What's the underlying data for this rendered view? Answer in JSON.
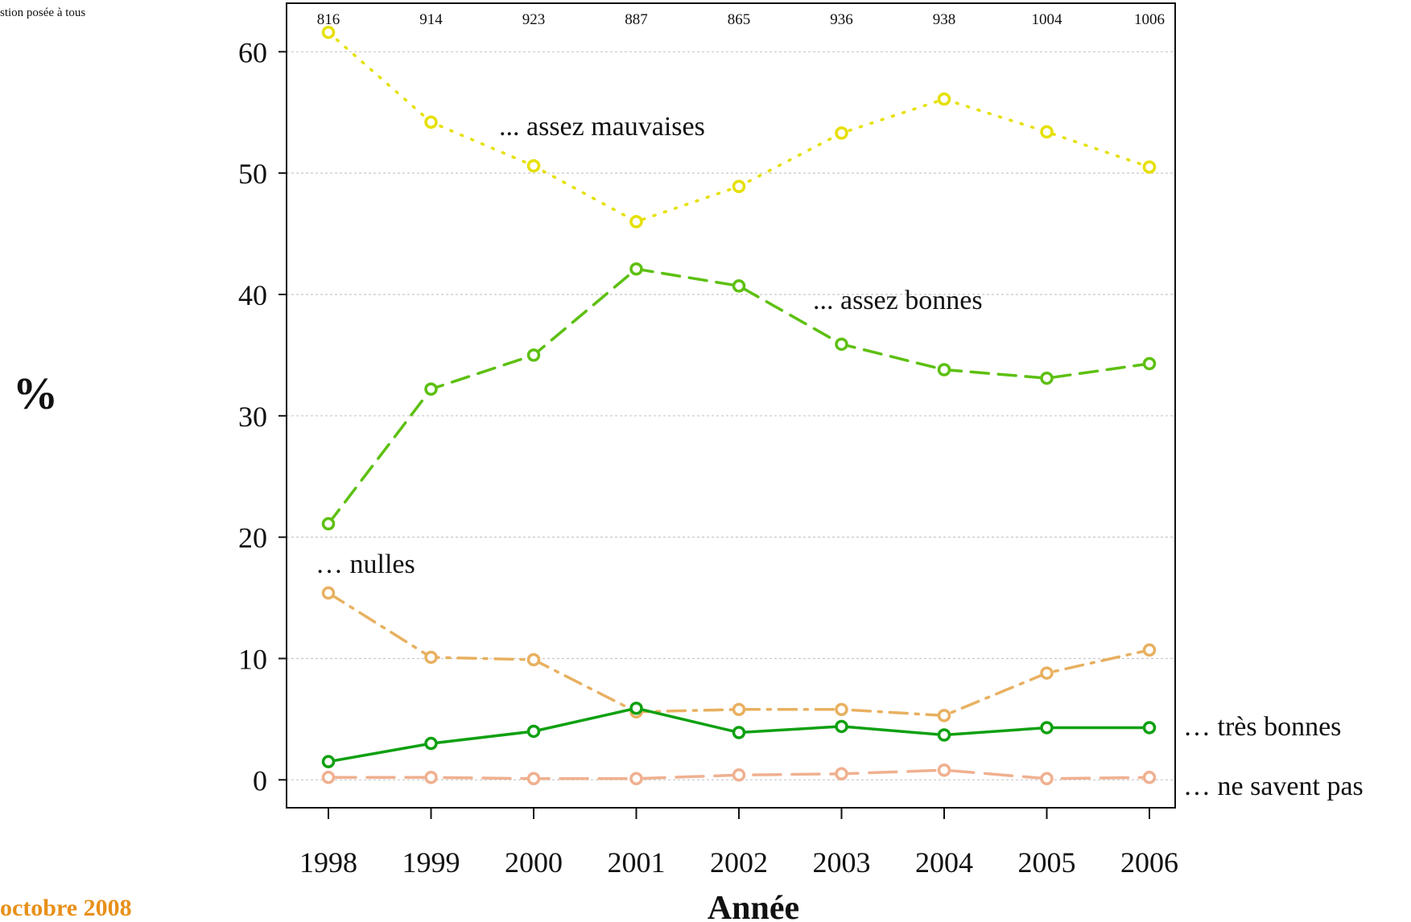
{
  "note": "stion posée à tous",
  "footer_date": "octobre 2008",
  "chart_data": {
    "type": "line",
    "ylabel": "%",
    "xlabel": "Année",
    "x": [
      1998,
      1999,
      2000,
      2001,
      2002,
      2003,
      2004,
      2005,
      2006
    ],
    "sample_sizes": [
      "816",
      "914",
      "923",
      "887",
      "865",
      "936",
      "938",
      "1004",
      "1006"
    ],
    "ylim": [
      -2.3,
      64
    ],
    "yticks": [
      0,
      10,
      20,
      30,
      40,
      50,
      60
    ],
    "grid": true,
    "series": [
      {
        "name": "... assez mauvaises",
        "color": "#e6e000",
        "dash": "dotted",
        "values": [
          61.6,
          54.2,
          50.6,
          46.0,
          48.9,
          53.3,
          56.1,
          53.4,
          50.5
        ]
      },
      {
        "name": "... assez bonnes",
        "color": "#5dc010",
        "dash": "dashed",
        "values": [
          21.1,
          32.2,
          35.0,
          42.1,
          40.7,
          35.9,
          33.8,
          33.1,
          34.3
        ]
      },
      {
        "name": "… nulles",
        "color": "#e8b060",
        "dash": "dashdot",
        "values": [
          15.4,
          10.1,
          9.9,
          5.6,
          5.8,
          5.8,
          5.3,
          8.8,
          10.7
        ]
      },
      {
        "name": "… très bonnes",
        "color": "#0ea010",
        "dash": "solid",
        "values": [
          1.5,
          3.0,
          4.0,
          5.9,
          3.9,
          4.4,
          3.7,
          4.3,
          4.3
        ]
      },
      {
        "name": "… ne savent pas",
        "color": "#f0b090",
        "dash": "longdash",
        "values": [
          0.2,
          0.2,
          0.1,
          0.1,
          0.4,
          0.5,
          0.8,
          0.1,
          0.2
        ]
      }
    ]
  }
}
